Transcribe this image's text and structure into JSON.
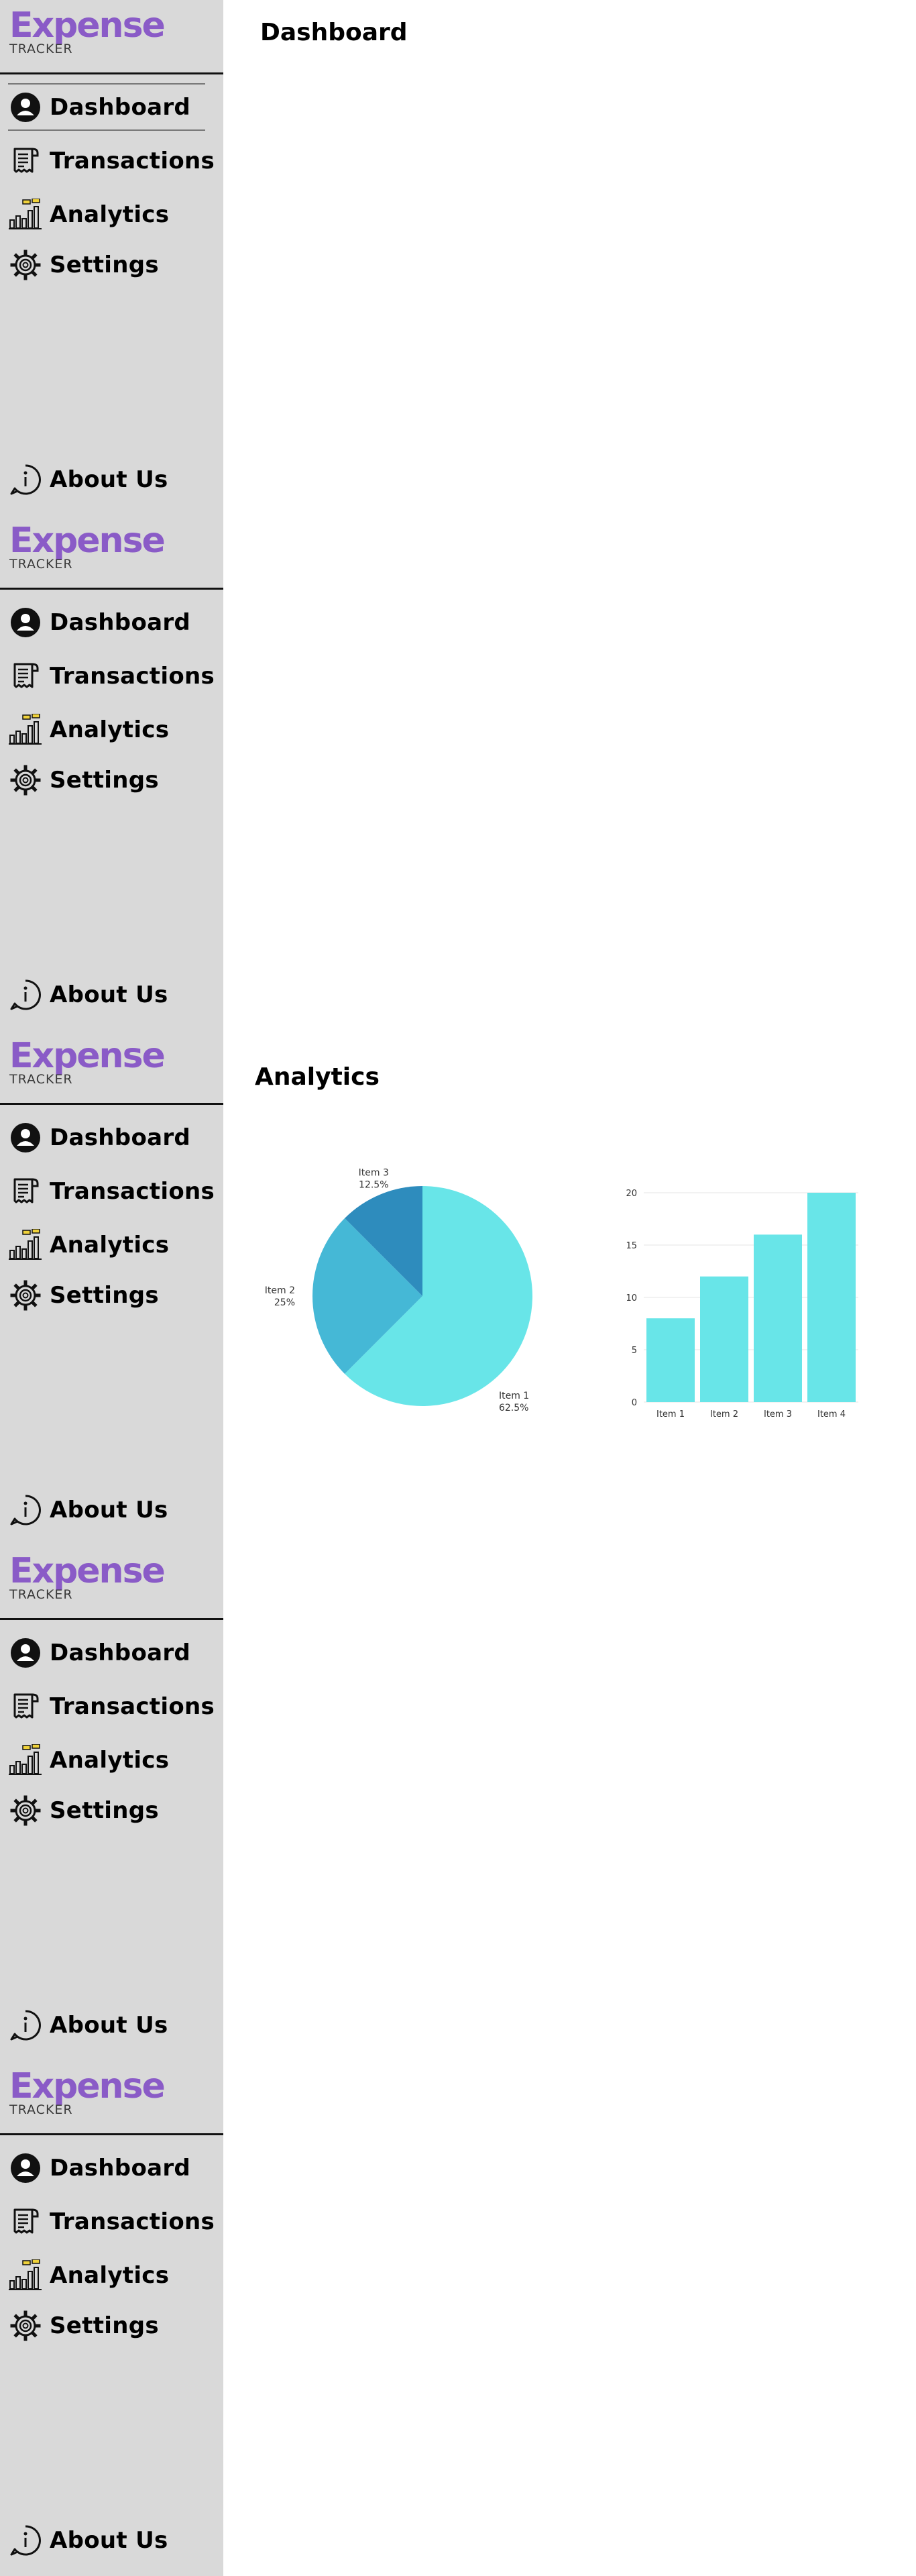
{
  "brand": {
    "name": "Expense",
    "tagline": "TRACKER"
  },
  "nav": [
    {
      "label": "Dashboard",
      "icon": "user-icon"
    },
    {
      "label": "Transactions",
      "icon": "receipt-icon"
    },
    {
      "label": "Analytics",
      "icon": "bar-chart-icon"
    },
    {
      "label": "Settings",
      "icon": "gear-icon"
    }
  ],
  "about": {
    "label": "About Us",
    "icon": "info-icon"
  },
  "pages": {
    "dashboard_title": "Dashboard",
    "analytics_title": "Analytics"
  },
  "colors": {
    "brand": "#8a5bc7",
    "sidebar_bg": "#d9d9d9",
    "pie": [
      "#68e5e8",
      "#45b8d6",
      "#2e8cbd"
    ],
    "bar": "#68e5e8"
  },
  "chart_data": [
    {
      "type": "pie",
      "slices": [
        {
          "label": "Item 1",
          "percent_label": "62.5%",
          "value": 62.5
        },
        {
          "label": "Item 2",
          "percent_label": "25%",
          "value": 25
        },
        {
          "label": "Item 3",
          "percent_label": "12.5%",
          "value": 12.5
        }
      ]
    },
    {
      "type": "bar",
      "categories": [
        "Item 1",
        "Item 2",
        "Item 3",
        "Item 4"
      ],
      "values": [
        8,
        12,
        16,
        20
      ],
      "ylim": [
        0,
        20
      ],
      "yticks": [
        0,
        5,
        10,
        15,
        20
      ],
      "grid": true
    }
  ]
}
